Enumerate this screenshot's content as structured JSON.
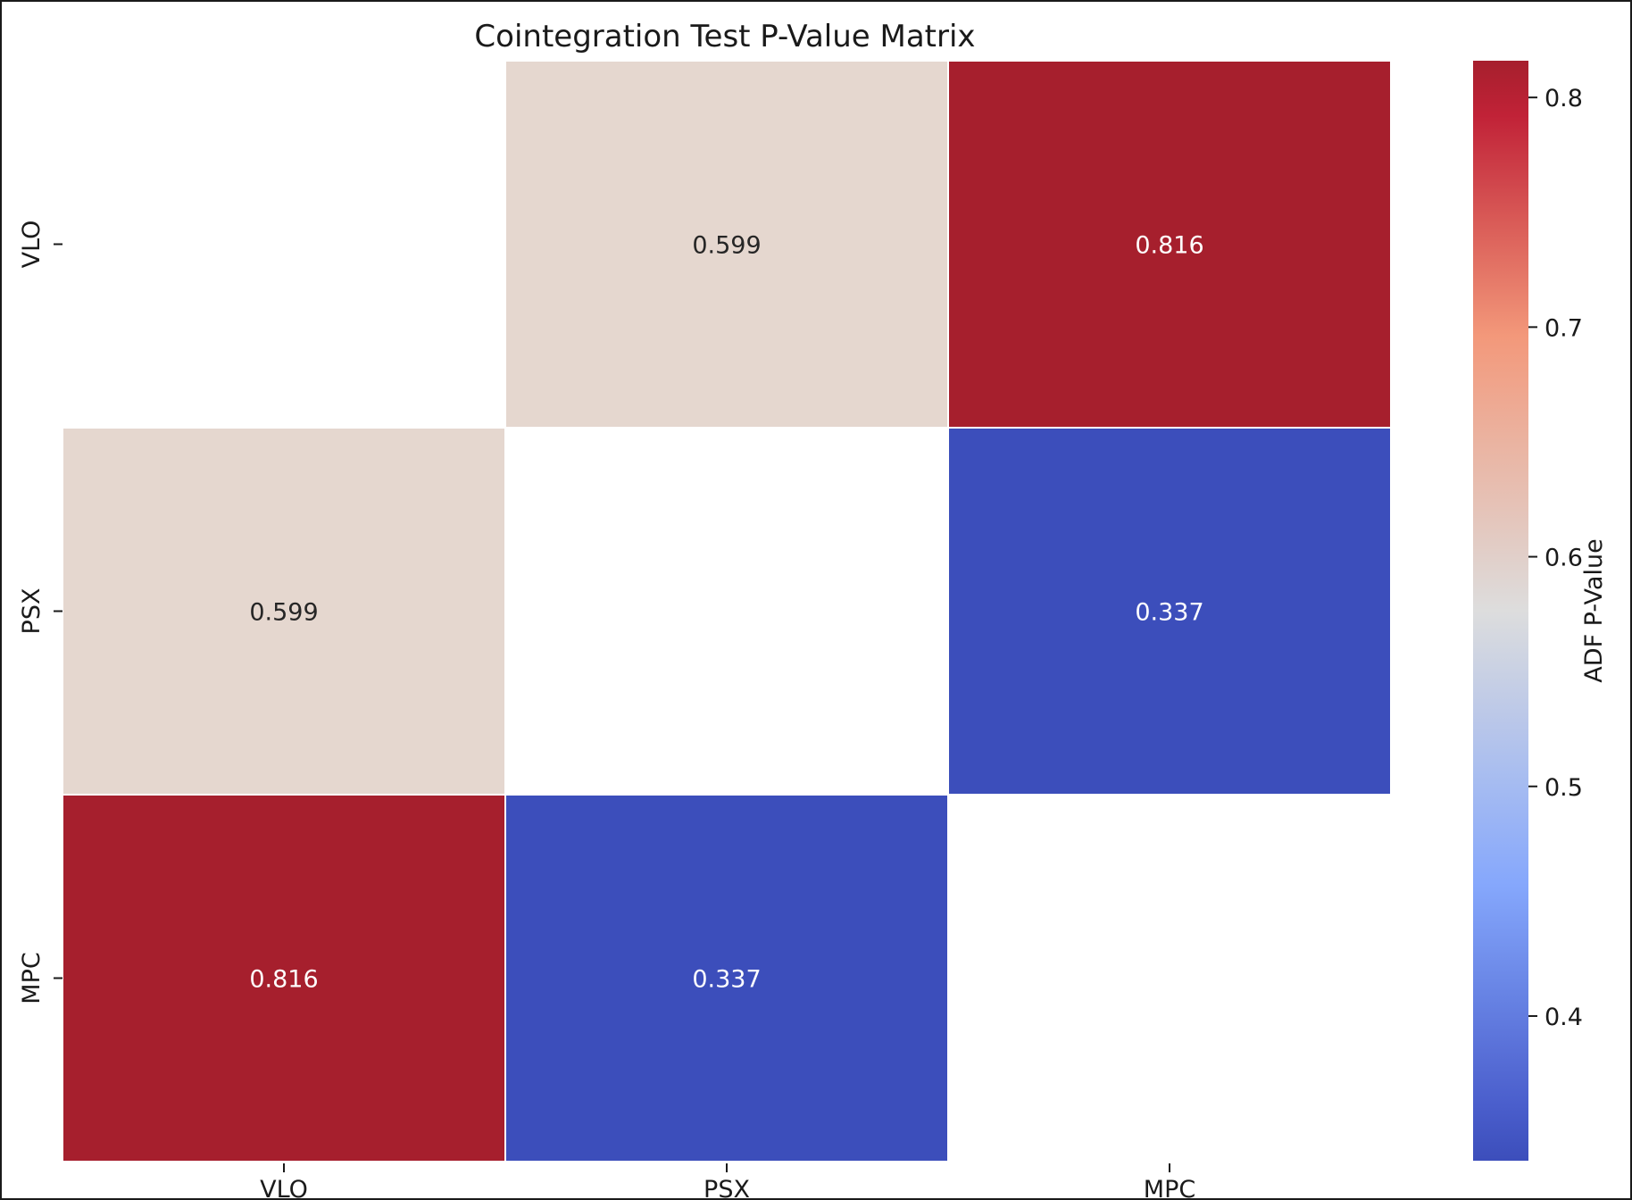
{
  "chart_data": {
    "type": "heatmap",
    "title": "Cointegration Test P-Value Matrix",
    "x_categories": [
      "VLO",
      "PSX",
      "MPC"
    ],
    "y_categories": [
      "VLO",
      "PSX",
      "MPC"
    ],
    "matrix": [
      [
        null,
        0.599,
        0.816
      ],
      [
        0.599,
        null,
        0.337
      ],
      [
        0.816,
        0.337,
        null
      ]
    ],
    "value_format": "3 decimals",
    "colormap": "coolwarm",
    "colorbar": {
      "label": "ADF P-Value",
      "range": [
        0.337,
        0.816
      ],
      "ticks": [
        0.4,
        0.5,
        0.6,
        0.7,
        0.8
      ],
      "tick_labels": [
        "0.4",
        "0.5",
        "0.6",
        "0.7",
        "0.8"
      ]
    },
    "masked_cells": "diagonal",
    "colors": {
      "low": "#3c4ebb",
      "mid": "#dddddd",
      "high": "#a61f2d",
      "label_dark": "#262626",
      "label_light": "#ffffff",
      "background": "#ffffff"
    }
  }
}
